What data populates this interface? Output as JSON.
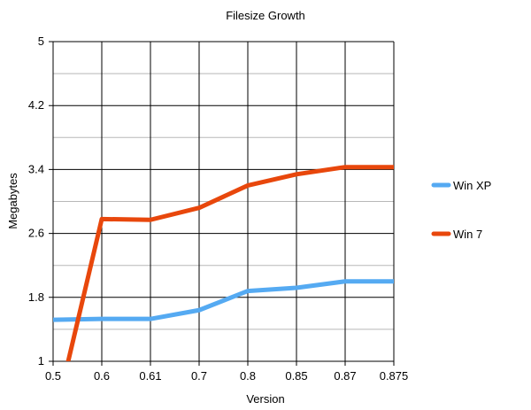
{
  "chart_data": {
    "type": "line",
    "title": "Filesize Growth",
    "xlabel": "Version",
    "ylabel": "Megabytes",
    "categories": [
      "0.5",
      "0.6",
      "0.61",
      "0.7",
      "0.8",
      "0.85",
      "0.87",
      "0.875"
    ],
    "ylim": [
      1,
      5
    ],
    "yticks": [
      "1",
      "1.8",
      "2.6",
      "3.4",
      "4.2",
      "5"
    ],
    "ytick_values": [
      1,
      1.8,
      2.6,
      3.4,
      4.2,
      5
    ],
    "minor_gridlines": true,
    "grid": true,
    "legend_position": "right",
    "series": [
      {
        "name": "Win XP",
        "color": "#55aaf2",
        "values": [
          1.52,
          1.53,
          1.53,
          1.64,
          1.88,
          1.92,
          2.0,
          2.0
        ]
      },
      {
        "name": "Win 7",
        "color": "#e8470c",
        "values": [
          0.2,
          2.78,
          2.77,
          2.92,
          3.2,
          3.34,
          3.43,
          3.43
        ]
      }
    ]
  }
}
